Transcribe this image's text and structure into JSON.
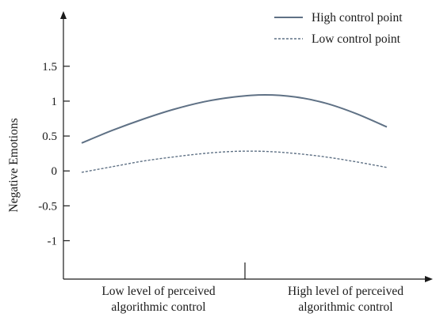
{
  "chart_data": {
    "type": "line",
    "title": "",
    "xlabel": "",
    "ylabel": "Negative Emotions",
    "x": [
      0,
      0.1,
      0.2,
      0.3,
      0.4,
      0.5,
      0.6,
      0.7,
      0.8,
      0.9,
      1.0
    ],
    "categories": [
      [
        "Low level of perceived",
        "algorithmic control"
      ],
      [
        "High level of perceived",
        "algorithmic control"
      ]
    ],
    "yticks": [
      "1.5",
      "1",
      "0.5",
      "0",
      "-0.5",
      "-1"
    ],
    "ytick_values": [
      1.5,
      1,
      0.5,
      0,
      -0.5,
      -1
    ],
    "ylim": [
      -1.55,
      2.2
    ],
    "grid": false,
    "legend_position": "top-right",
    "series": [
      {
        "name": "High control point",
        "style": "solid",
        "color": "#5f7185",
        "values": [
          0.4,
          0.58,
          0.74,
          0.88,
          0.99,
          1.06,
          1.09,
          1.06,
          0.97,
          0.82,
          0.63
        ]
      },
      {
        "name": "Low control point",
        "style": "dashed",
        "color": "#5f7185",
        "values": [
          -0.02,
          0.06,
          0.14,
          0.2,
          0.25,
          0.28,
          0.28,
          0.25,
          0.2,
          0.13,
          0.05
        ]
      }
    ]
  }
}
